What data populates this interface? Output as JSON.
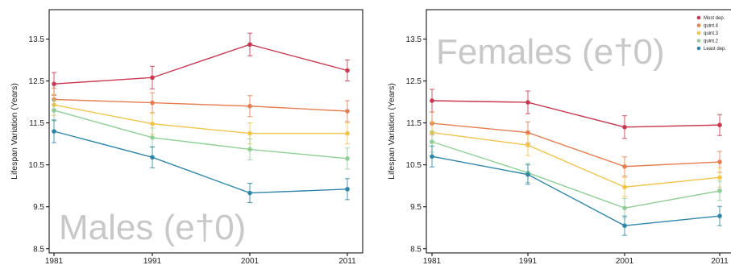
{
  "chart_data": [
    {
      "type": "line",
      "panel": "males",
      "title": "",
      "annotation": "Males (e†0)",
      "xlabel": "",
      "ylabel": "Lifespan Variation (Years)",
      "x": [
        1981,
        1991,
        2001,
        2011
      ],
      "x_tick_labels": [
        "1981",
        "1991",
        "2001",
        "2011"
      ],
      "ylim": [
        8.4,
        14.2
      ],
      "y_ticks": [
        8.5,
        9.5,
        10.5,
        11.5,
        12.5,
        13.5
      ],
      "y_tick_labels": [
        "8.5",
        "9.5",
        "10.5",
        "11.5",
        "12.5",
        "13.5"
      ],
      "grid": false,
      "legend": false,
      "series": [
        {
          "key": "most_dep",
          "color": "#c9384e",
          "values": [
            12.43,
            12.58,
            13.37,
            12.75
          ],
          "err": [
            0.27,
            0.27,
            0.27,
            0.25
          ]
        },
        {
          "key": "quint4",
          "color": "#e67e50",
          "values": [
            12.06,
            11.98,
            11.9,
            11.78
          ],
          "err": [
            0.27,
            0.24,
            0.25,
            0.25
          ]
        },
        {
          "key": "quint3",
          "color": "#f2c44a",
          "values": [
            11.93,
            11.48,
            11.25,
            11.25
          ],
          "err": [
            0.25,
            0.25,
            0.25,
            0.25
          ]
        },
        {
          "key": "quint2",
          "color": "#8fcf96",
          "values": [
            11.8,
            11.15,
            10.87,
            10.65
          ],
          "err": [
            0.25,
            0.23,
            0.25,
            0.25
          ]
        },
        {
          "key": "least_dep",
          "color": "#2e86ab",
          "values": [
            11.3,
            10.68,
            9.83,
            9.92
          ],
          "err": [
            0.27,
            0.25,
            0.23,
            0.25
          ]
        }
      ]
    },
    {
      "type": "line",
      "panel": "females",
      "title": "",
      "annotation": "Females (e†0)",
      "xlabel": "",
      "ylabel": "Lifespan Variation (Years)",
      "x": [
        1981,
        1991,
        2001,
        2011
      ],
      "x_tick_labels": [
        "1981",
        "1991",
        "2001",
        "2011"
      ],
      "ylim": [
        8.4,
        14.2
      ],
      "y_ticks": [
        8.5,
        9.5,
        10.5,
        11.5,
        12.5,
        13.5
      ],
      "y_tick_labels": [
        "8.5",
        "9.5",
        "10.5",
        "11.5",
        "12.5",
        "13.5"
      ],
      "grid": false,
      "legend": "top-right",
      "series": [
        {
          "key": "most_dep",
          "name": "Most dep.",
          "color": "#c9384e",
          "values": [
            12.03,
            11.99,
            11.4,
            11.45
          ],
          "err": [
            0.27,
            0.27,
            0.27,
            0.25
          ]
        },
        {
          "key": "quint4",
          "name": "quint.4",
          "color": "#e67e50",
          "values": [
            11.49,
            11.27,
            10.46,
            10.57
          ],
          "err": [
            0.27,
            0.25,
            0.23,
            0.25
          ]
        },
        {
          "key": "quint3",
          "name": "quint.3",
          "color": "#f2c44a",
          "values": [
            11.27,
            10.97,
            9.97,
            10.2
          ],
          "err": [
            0.25,
            0.25,
            0.23,
            0.23
          ]
        },
        {
          "key": "quint2",
          "name": "quint.2",
          "color": "#8fcf96",
          "values": [
            11.05,
            10.31,
            9.47,
            9.88
          ],
          "err": [
            0.25,
            0.23,
            0.23,
            0.23
          ]
        },
        {
          "key": "least_dep",
          "name": "Least dep.",
          "color": "#2e86ab",
          "values": [
            10.7,
            10.27,
            9.05,
            9.28
          ],
          "err": [
            0.25,
            0.23,
            0.23,
            0.23
          ]
        }
      ]
    }
  ]
}
